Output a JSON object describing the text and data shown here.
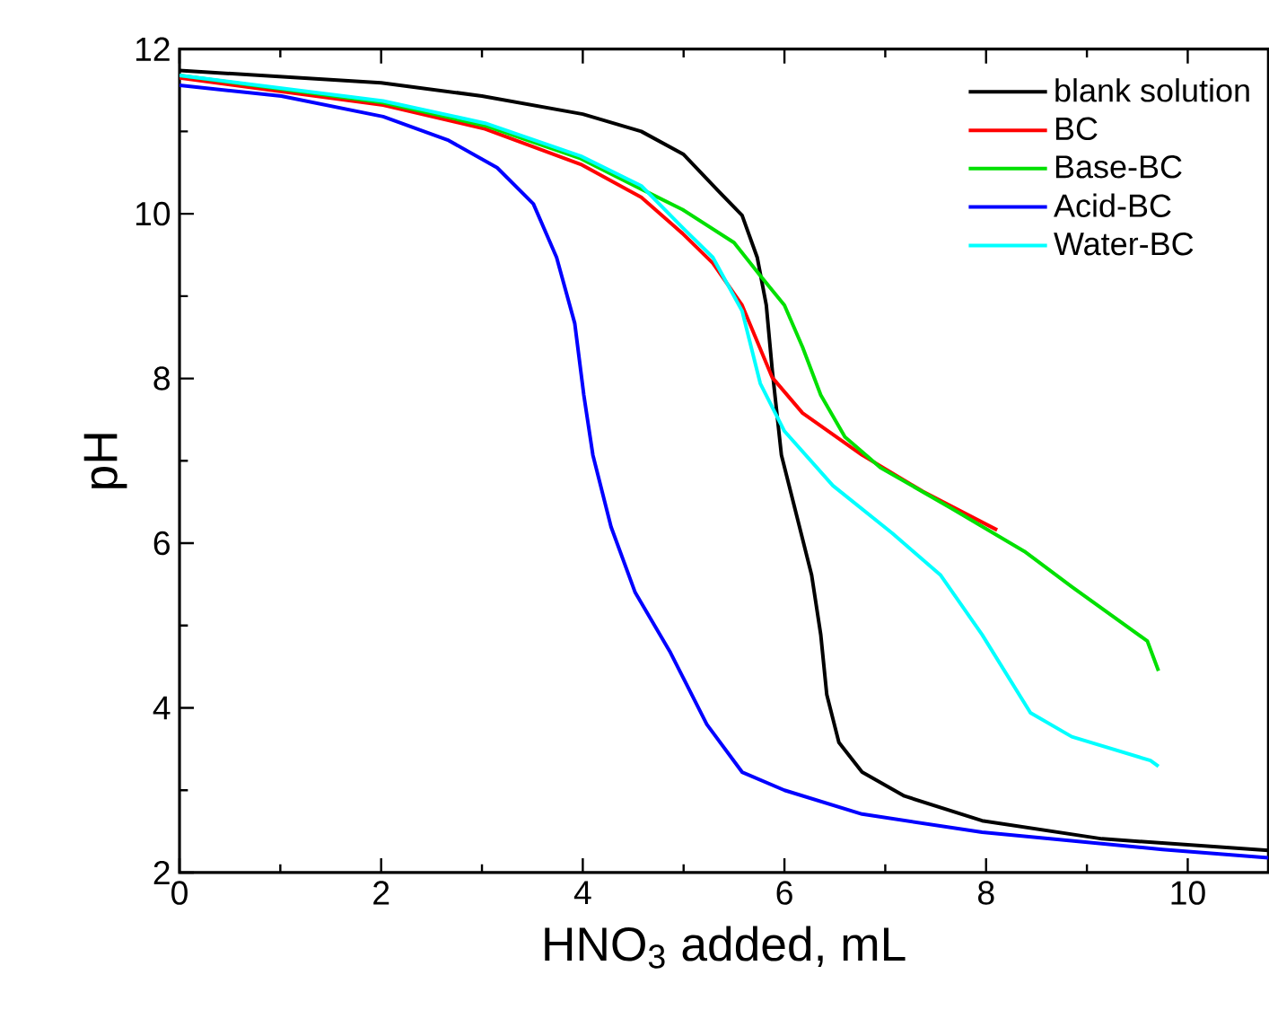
{
  "chart_data": {
    "type": "line",
    "xlabel": "HNO$_{3}$ added, mL",
    "ylabel": "pH",
    "xlim": [
      0,
      10.8
    ],
    "ylim": [
      2,
      12
    ],
    "xticks": [
      0,
      2,
      4,
      6,
      8,
      10
    ],
    "yticks": [
      2,
      4,
      6,
      8,
      10,
      12
    ],
    "grid": false,
    "legend": "top right",
    "marker": "none",
    "line_style": "solid",
    "series": [
      {
        "name": "blank solution",
        "color": "#000000",
        "x": [
          0,
          2,
          3,
          4,
          4.58,
          5.0,
          5.35,
          5.58,
          5.73,
          5.82,
          5.88,
          5.97,
          6.12,
          6.27,
          6.36,
          6.42,
          6.54,
          6.77,
          7.19,
          7.96,
          9.15,
          10.8
        ],
        "values": [
          11.74,
          11.59,
          11.43,
          11.21,
          11.0,
          10.72,
          10.27,
          9.98,
          9.47,
          8.89,
          8.09,
          7.07,
          6.34,
          5.61,
          4.89,
          4.16,
          3.58,
          3.22,
          2.93,
          2.63,
          2.41,
          2.27
        ]
      },
      {
        "name": "BC",
        "color": "#ff0000",
        "x": [
          0,
          2.02,
          3.03,
          3.98,
          4.58,
          4.99,
          5.29,
          5.58,
          5.88,
          6.18,
          6.77,
          7.37,
          8.11
        ],
        "values": [
          11.65,
          11.32,
          11.03,
          10.6,
          10.2,
          9.76,
          9.4,
          8.89,
          8.01,
          7.58,
          7.07,
          6.63,
          6.16
        ]
      },
      {
        "name": "Base-BC",
        "color": "#00e000",
        "x": [
          0,
          2.02,
          3.03,
          3.98,
          4.58,
          4.99,
          5.5,
          5.76,
          6.0,
          6.18,
          6.36,
          6.6,
          6.95,
          7.66,
          8.38,
          8.85,
          9.6,
          9.71
        ],
        "values": [
          11.68,
          11.35,
          11.07,
          10.67,
          10.3,
          10.05,
          9.65,
          9.25,
          8.89,
          8.38,
          7.8,
          7.29,
          6.92,
          6.42,
          5.9,
          5.47,
          4.81,
          4.45
        ]
      },
      {
        "name": "Acid-BC",
        "color": "#0000ff",
        "x": [
          0,
          1.01,
          2.02,
          2.67,
          3.15,
          3.51,
          3.74,
          3.92,
          4.01,
          4.1,
          4.28,
          4.52,
          4.87,
          5.23,
          5.58,
          6.0,
          6.77,
          7.96,
          9.75,
          10.8
        ],
        "values": [
          11.56,
          11.43,
          11.18,
          10.89,
          10.56,
          10.12,
          9.47,
          8.67,
          7.8,
          7.07,
          6.2,
          5.4,
          4.67,
          3.8,
          3.22,
          3.0,
          2.71,
          2.49,
          2.28,
          2.18
        ]
      },
      {
        "name": "Water-BC",
        "color": "#00ffff",
        "x": [
          0,
          2.02,
          3.03,
          3.98,
          4.58,
          4.99,
          5.29,
          5.58,
          5.76,
          6.0,
          6.48,
          7.07,
          7.55,
          7.96,
          8.44,
          8.85,
          9.63,
          9.71
        ],
        "values": [
          11.68,
          11.37,
          11.1,
          10.7,
          10.34,
          9.83,
          9.47,
          8.82,
          7.94,
          7.36,
          6.7,
          6.12,
          5.61,
          4.89,
          3.94,
          3.65,
          3.36,
          3.29
        ]
      }
    ]
  }
}
